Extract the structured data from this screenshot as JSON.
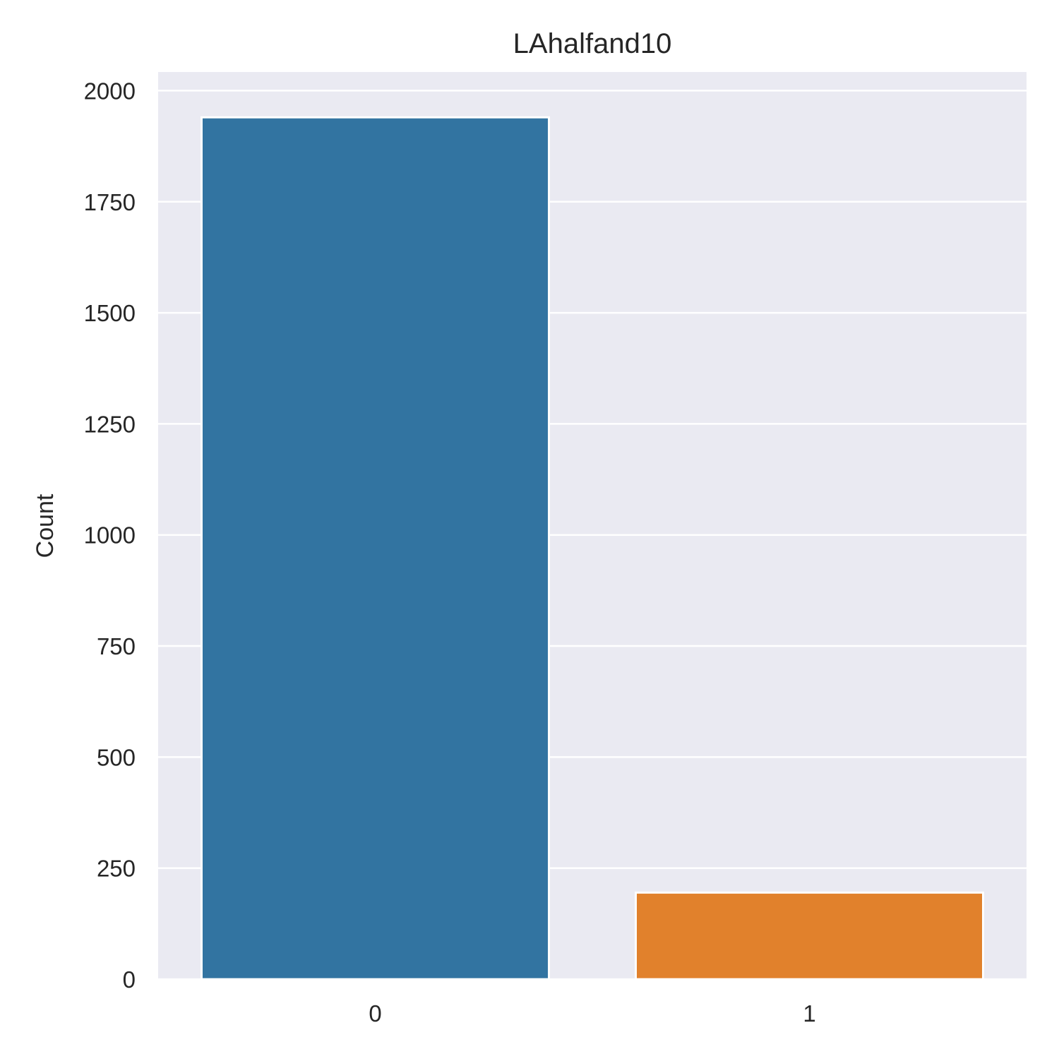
{
  "chart_data": {
    "type": "bar",
    "title": "LAhalfand10",
    "xlabel": "",
    "ylabel": "Count",
    "categories": [
      "0",
      "1"
    ],
    "values": [
      1940,
      195
    ],
    "colors": [
      "#3274a1",
      "#e1812c"
    ],
    "ylim": [
      0,
      2042
    ],
    "yticks": [
      0,
      250,
      500,
      750,
      1000,
      1250,
      1500,
      1750,
      2000
    ],
    "grid": true,
    "legend": "none",
    "background": "#eaeaf2",
    "grid_color": "#ffffff"
  }
}
